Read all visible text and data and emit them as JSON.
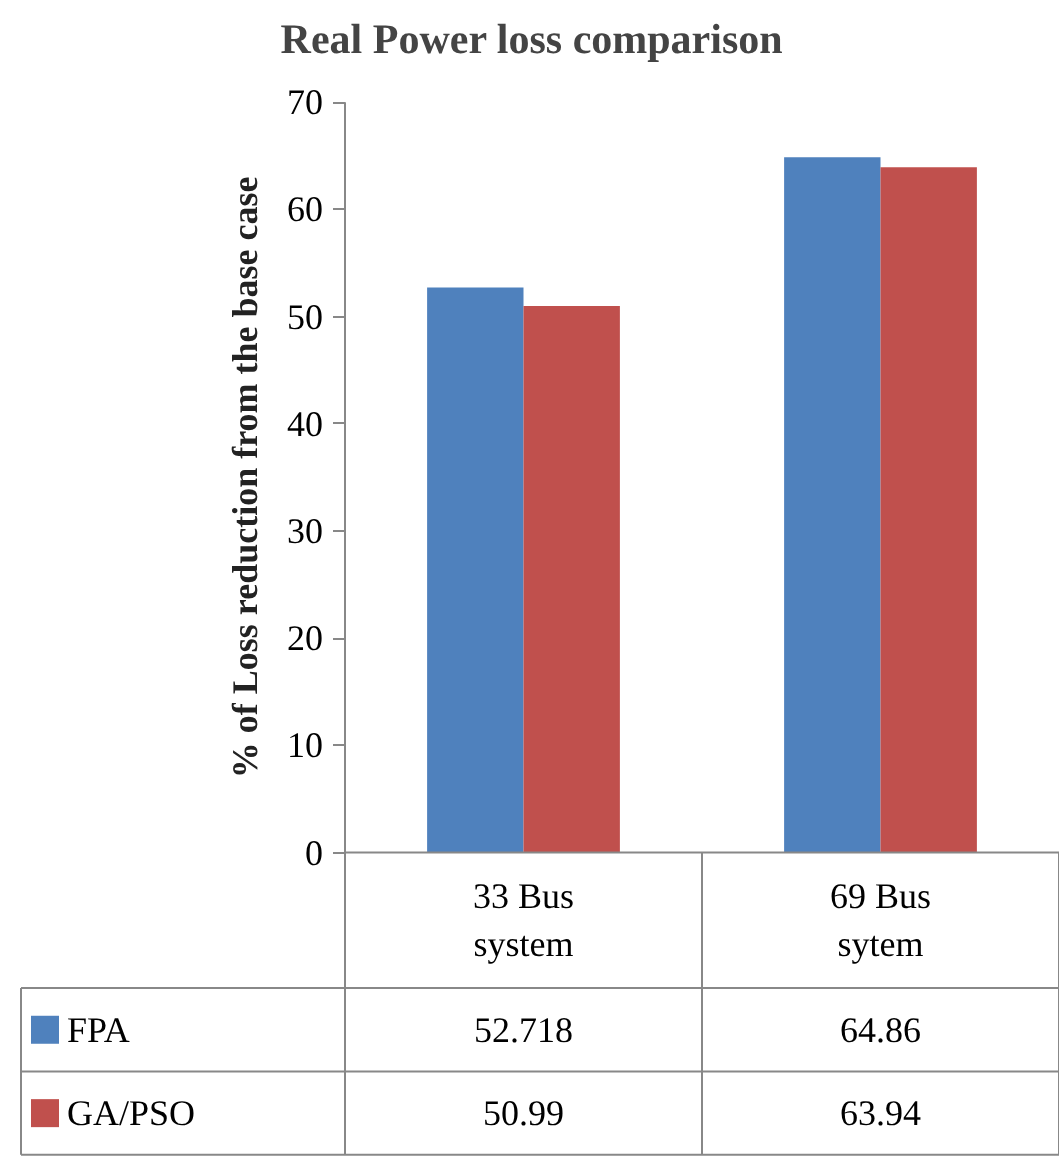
{
  "chart_data": {
    "type": "bar",
    "title": "Real Power loss comparison",
    "ylabel": "% of Loss reduction from the base case",
    "categories": [
      "33 Bus system",
      "69 Bus sytem"
    ],
    "series": [
      {
        "name": "FPA",
        "color": "#4f81bd",
        "values": [
          52.718,
          64.86
        ]
      },
      {
        "name": "GA/PSO",
        "color": "#c0504d",
        "values": [
          50.99,
          63.94
        ]
      }
    ],
    "ylim": [
      0,
      70
    ],
    "yticks": [
      0,
      10,
      20,
      30,
      40,
      50,
      60,
      70
    ],
    "grid": false,
    "data_labels": true,
    "legend": "bottom"
  }
}
